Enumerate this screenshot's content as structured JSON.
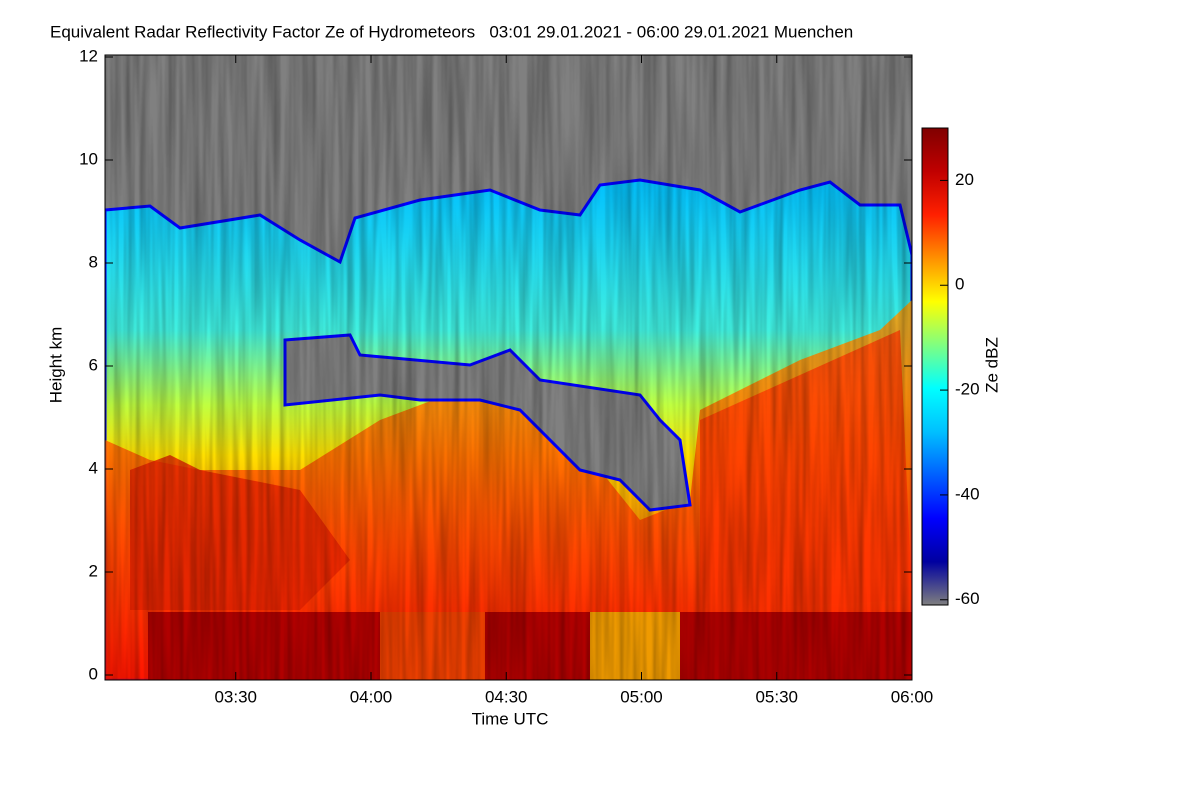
{
  "chart_data": {
    "type": "heatmap",
    "title": "Equivalent Radar Reflectivity Factor Ze of Hydrometeors   03:01 29.01.2021 - 06:00 29.01.2021 Muenchen",
    "x_label": "Time UTC",
    "y_label": "Height km",
    "xlim": [
      181,
      360
    ],
    "xticks": [
      {
        "value": 210,
        "label": "03:30"
      },
      {
        "value": 240,
        "label": "04:00"
      },
      {
        "value": 270,
        "label": "04:30"
      },
      {
        "value": 300,
        "label": "05:00"
      },
      {
        "value": 330,
        "label": "05:30"
      },
      {
        "value": 360,
        "label": "06:00"
      }
    ],
    "ylim": [
      0,
      12
    ],
    "yticks": [
      0,
      2,
      4,
      6,
      8,
      10,
      12
    ],
    "colorbar": {
      "label": "Ze dBZ",
      "lim": [
        -61,
        30
      ],
      "ticks": [
        20,
        0,
        -20,
        -40,
        -60
      ],
      "colors": [
        "#7f7f7f",
        "#0000a0",
        "#0000ff",
        "#0060ff",
        "#00c0ff",
        "#00ffff",
        "#80ff80",
        "#ffff00",
        "#ff9000",
        "#ff2000",
        "#c00000",
        "#800000"
      ]
    }
  }
}
